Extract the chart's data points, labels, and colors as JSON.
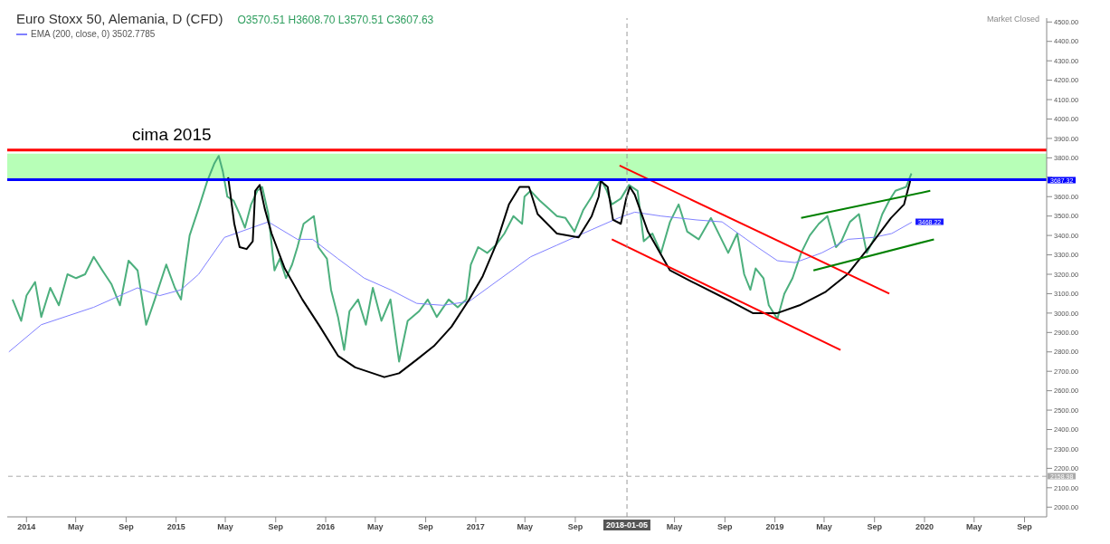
{
  "chart_data": {
    "type": "line",
    "title": "Euro Stoxx 50, Alemania, D (CFD)",
    "subtitle": "O3570.51 H3608.70 L3570.51 C3607.63",
    "xlim": [
      "2013-11-15",
      "2020-10-25"
    ],
    "xticks": [
      {
        "value": "2014-01-01",
        "label": "2014"
      },
      {
        "value": "2014-05-01",
        "label": "May"
      },
      {
        "value": "2014-09-01",
        "label": "Sep"
      },
      {
        "value": "2015-01-01",
        "label": "2015"
      },
      {
        "value": "2015-05-01",
        "label": "May"
      },
      {
        "value": "2015-09-01",
        "label": "Sep"
      },
      {
        "value": "2016-01-01",
        "label": "2016"
      },
      {
        "value": "2016-05-01",
        "label": "May"
      },
      {
        "value": "2016-09-01",
        "label": "Sep"
      },
      {
        "value": "2017-01-01",
        "label": "2017"
      },
      {
        "value": "2017-05-01",
        "label": "May"
      },
      {
        "value": "2017-09-01",
        "label": "Sep"
      },
      {
        "value": "2018-05-01",
        "label": "May"
      },
      {
        "value": "2018-09-01",
        "label": "Sep"
      },
      {
        "value": "2019-01-01",
        "label": "2019"
      },
      {
        "value": "2019-05-01",
        "label": "May"
      },
      {
        "value": "2019-09-01",
        "label": "Sep"
      },
      {
        "value": "2020-01-01",
        "label": "2020"
      },
      {
        "value": "2020-05-01",
        "label": "May"
      },
      {
        "value": "2020-09-01",
        "label": "Sep"
      }
    ],
    "ylim": [
      1950,
      4520
    ],
    "yticks": [
      {
        "value": 2000,
        "label": "2000.00"
      },
      {
        "value": 2100,
        "label": "2100.00"
      },
      {
        "value": 2200,
        "label": "2200.00"
      },
      {
        "value": 2300,
        "label": "2300.00"
      },
      {
        "value": 2400,
        "label": "2400.00"
      },
      {
        "value": 2500,
        "label": "2500.00"
      },
      {
        "value": 2600,
        "label": "2600.00"
      },
      {
        "value": 2700,
        "label": "2700.00"
      },
      {
        "value": 2800,
        "label": "2800.00"
      },
      {
        "value": 2900,
        "label": "2900.00"
      },
      {
        "value": 3000,
        "label": "3000.00"
      },
      {
        "value": 3100,
        "label": "3100.00"
      },
      {
        "value": 3200,
        "label": "3200.00"
      },
      {
        "value": 3300,
        "label": "3300.00"
      },
      {
        "value": 3400,
        "label": "3400.00"
      },
      {
        "value": 3500,
        "label": "3500.00"
      },
      {
        "value": 3600,
        "label": "3600.00"
      },
      {
        "value": 3700,
        "label": null
      },
      {
        "value": 3800,
        "label": "3800.00"
      },
      {
        "value": 3900,
        "label": "3900.00"
      },
      {
        "value": 4000,
        "label": "4000.00"
      },
      {
        "value": 4100,
        "label": "4100.00"
      },
      {
        "value": 4200,
        "label": "4200.00"
      },
      {
        "value": 4300,
        "label": "4300.00"
      },
      {
        "value": 4400,
        "label": "4400.00"
      },
      {
        "value": 4500,
        "label": "4500.00"
      }
    ],
    "grid": false,
    "legend": "top left",
    "marker": "none",
    "line_style": "solid",
    "series": [
      {
        "color": "#4caf7d",
        "x": [
          "2013-11-28",
          "2013-12-19",
          "2014-01-01",
          "2014-01-22",
          "2014-02-06",
          "2014-02-28",
          "2014-03-21",
          "2014-04-11",
          "2014-05-02",
          "2014-05-24",
          "2014-06-14",
          "2014-07-05",
          "2014-07-27",
          "2014-08-17",
          "2014-09-07",
          "2014-09-29",
          "2014-10-20",
          "2014-11-10",
          "2014-12-08",
          "2014-12-29",
          "2015-01-13",
          "2015-01-24",
          "2015-02-03",
          "2015-02-25",
          "2015-03-18",
          "2015-04-04",
          "2015-04-15",
          "2015-04-25",
          "2015-05-06",
          "2015-05-21",
          "2015-06-05",
          "2015-06-18",
          "2015-07-03",
          "2015-07-18",
          "2015-07-30",
          "2015-08-14",
          "2015-08-29",
          "2015-09-11",
          "2015-09-26",
          "2015-10-11",
          "2015-10-24",
          "2015-11-08",
          "2015-12-03",
          "2015-12-14",
          "2016-01-04",
          "2016-01-14",
          "2016-01-31",
          "2016-02-15",
          "2016-02-28",
          "2016-03-20",
          "2016-04-08",
          "2016-04-25",
          "2016-05-16",
          "2016-06-07",
          "2016-06-28",
          "2016-07-19",
          "2016-08-16",
          "2016-09-06",
          "2016-09-28",
          "2016-10-27",
          "2016-11-18",
          "2016-12-09",
          "2016-12-20",
          "2017-01-07",
          "2017-01-29",
          "2017-02-19",
          "2017-03-12",
          "2017-04-03",
          "2017-04-24",
          "2017-04-30",
          "2017-05-15",
          "2017-06-06",
          "2017-06-27",
          "2017-07-18",
          "2017-08-08",
          "2017-08-30",
          "2017-09-20",
          "2017-10-11",
          "2017-11-02",
          "2017-11-17",
          "2017-11-29",
          "2017-12-21",
          "2018-01-10",
          "2018-01-31",
          "2018-02-15",
          "2018-03-08",
          "2018-03-29",
          "2018-04-20",
          "2018-05-11",
          "2018-06-01",
          "2018-06-29",
          "2018-07-29",
          "2018-08-19",
          "2018-09-09",
          "2018-10-01",
          "2018-10-18",
          "2018-11-02",
          "2018-11-15",
          "2018-12-04",
          "2018-12-17",
          "2019-01-07",
          "2019-01-24",
          "2019-02-13",
          "2019-03-06",
          "2019-03-27",
          "2019-04-18",
          "2019-05-09",
          "2019-05-30",
          "2019-06-12",
          "2019-07-03",
          "2019-07-25",
          "2019-08-13",
          "2019-08-30",
          "2019-09-20",
          "2019-10-07",
          "2019-10-22",
          "2019-11-17",
          "2019-11-30"
        ],
        "values": [
          3070,
          2960,
          3090,
          3160,
          2980,
          3130,
          3040,
          3200,
          3180,
          3200,
          3290,
          3220,
          3150,
          3040,
          3270,
          3220,
          2940,
          3070,
          3250,
          3130,
          3070,
          3250,
          3400,
          3540,
          3680,
          3770,
          3810,
          3730,
          3600,
          3580,
          3510,
          3440,
          3560,
          3630,
          3650,
          3510,
          3220,
          3280,
          3180,
          3250,
          3340,
          3460,
          3500,
          3340,
          3280,
          3120,
          2980,
          2810,
          3010,
          3070,
          2940,
          3130,
          2960,
          3070,
          2750,
          2960,
          3010,
          3070,
          2980,
          3070,
          3030,
          3070,
          3250,
          3340,
          3310,
          3350,
          3410,
          3500,
          3460,
          3600,
          3630,
          3580,
          3540,
          3500,
          3490,
          3420,
          3530,
          3600,
          3690,
          3630,
          3560,
          3590,
          3660,
          3630,
          3370,
          3410,
          3310,
          3470,
          3560,
          3420,
          3380,
          3490,
          3400,
          3310,
          3410,
          3200,
          3120,
          3230,
          3180,
          3040,
          2970,
          3100,
          3180,
          3310,
          3400,
          3460,
          3500,
          3340,
          3370,
          3470,
          3510,
          3310,
          3380,
          3510,
          3580,
          3630,
          3650,
          3720
        ]
      },
      {
        "name": "EMA (200, close, 0) 3502.7785",
        "color": "#8080ff",
        "x": [
          "2013-11-19",
          "2014-02-06",
          "2014-06-14",
          "2014-09-29",
          "2014-11-22",
          "2015-01-13",
          "2015-02-25",
          "2015-04-29",
          "2015-08-14",
          "2015-10-24",
          "2015-11-30",
          "2016-01-31",
          "2016-04-04",
          "2016-06-07",
          "2016-08-10",
          "2016-10-13",
          "2016-12-16",
          "2017-02-19",
          "2017-05-15",
          "2017-07-18",
          "2017-10-11",
          "2017-12-15",
          "2018-01-24",
          "2018-03-29",
          "2018-06-24",
          "2018-08-25",
          "2018-11-19",
          "2019-01-07",
          "2019-02-19",
          "2019-04-25",
          "2019-06-28",
          "2019-08-30",
          "2019-10-13",
          "2019-12-01"
        ],
        "values": [
          2800,
          2940,
          3030,
          3130,
          3090,
          3120,
          3200,
          3390,
          3470,
          3380,
          3380,
          3280,
          3180,
          3120,
          3050,
          3040,
          3060,
          3160,
          3290,
          3350,
          3430,
          3490,
          3520,
          3500,
          3480,
          3470,
          3340,
          3270,
          3260,
          3310,
          3380,
          3390,
          3410,
          3468.22
        ],
        "value_labels": [
          null,
          null,
          null,
          null,
          null,
          null,
          null,
          null,
          null,
          null,
          null,
          null,
          null,
          null,
          null,
          null,
          null,
          null,
          null,
          null,
          null,
          null,
          null,
          null,
          null,
          null,
          null,
          null,
          null,
          null,
          null,
          null,
          null,
          "3468.22"
        ]
      },
      {
        "color": "#000000",
        "x": [
          "2015-05-08",
          "2015-05-23",
          "2015-06-05",
          "2015-06-22",
          "2015-07-07",
          "2015-07-13",
          "2015-07-24",
          "2015-08-05",
          "2015-08-22",
          "2015-09-23",
          "2015-11-05",
          "2015-12-18",
          "2016-01-31",
          "2016-03-13",
          "2016-05-23",
          "2016-06-28",
          "2016-08-10",
          "2016-09-21",
          "2016-11-03",
          "2016-12-16",
          "2017-01-18",
          "2017-02-19",
          "2017-03-23",
          "2017-04-18",
          "2017-05-11",
          "2017-06-01",
          "2017-07-18",
          "2017-09-09",
          "2017-10-11",
          "2017-10-28",
          "2017-11-02",
          "2017-11-19",
          "2017-12-02",
          "2017-12-21",
          "2018-01-03",
          "2018-01-12",
          "2018-01-24",
          "2018-02-25",
          "2018-04-20",
          "2018-06-23",
          "2018-09-16",
          "2018-11-08",
          "2019-01-07",
          "2019-03-02",
          "2019-05-05",
          "2019-06-27",
          "2019-08-19",
          "2019-10-11",
          "2019-11-12",
          "2019-11-27"
        ],
        "values": [
          3700,
          3460,
          3340,
          3330,
          3370,
          3630,
          3660,
          3540,
          3410,
          3230,
          3070,
          2930,
          2780,
          2720,
          2670,
          2690,
          2760,
          2830,
          2930,
          3070,
          3190,
          3350,
          3560,
          3650,
          3650,
          3510,
          3410,
          3390,
          3500,
          3600,
          3680,
          3650,
          3480,
          3460,
          3590,
          3650,
          3610,
          3420,
          3220,
          3150,
          3060,
          3000,
          3000,
          3040,
          3110,
          3200,
          3340,
          3490,
          3560,
          3680
        ]
      },
      {
        "color": "#ff0000",
        "x": [
          "2017-12-18",
          "2019-10-07"
        ],
        "values": [
          3760,
          3100
        ]
      },
      {
        "color": "#ff0000",
        "x": [
          "2017-11-29",
          "2019-06-10"
        ],
        "values": [
          3380,
          2810
        ]
      },
      {
        "color": "#008000",
        "x": [
          "2019-03-06",
          "2020-01-15"
        ],
        "values": [
          3490,
          3630
        ]
      },
      {
        "color": "#008000",
        "x": [
          "2019-04-05",
          "2020-01-24"
        ],
        "values": [
          3220,
          3380
        ]
      }
    ],
    "bands": [
      {
        "axis": "y",
        "from": 3687.32,
        "to": 3822,
        "color": "#b7ffb7"
      }
    ],
    "ref_lines": [
      {
        "axis": "y",
        "value": 3840,
        "color": "#ff0000",
        "line_style": "solid"
      },
      {
        "axis": "y",
        "value": 3687.32,
        "label": "3687.32",
        "color": "#0000ff",
        "line_style": "solid"
      },
      {
        "axis": "y",
        "value": 2158.98,
        "label": "2158.98",
        "color": "#aaaaaa",
        "line_style": "dashed"
      },
      {
        "axis": "x",
        "value": "2018-01-05",
        "label": "2018-01-05",
        "color": "#999999",
        "line_style": "dashed"
      }
    ],
    "annotations": [
      "Market Closed",
      "cima 2015"
    ]
  }
}
